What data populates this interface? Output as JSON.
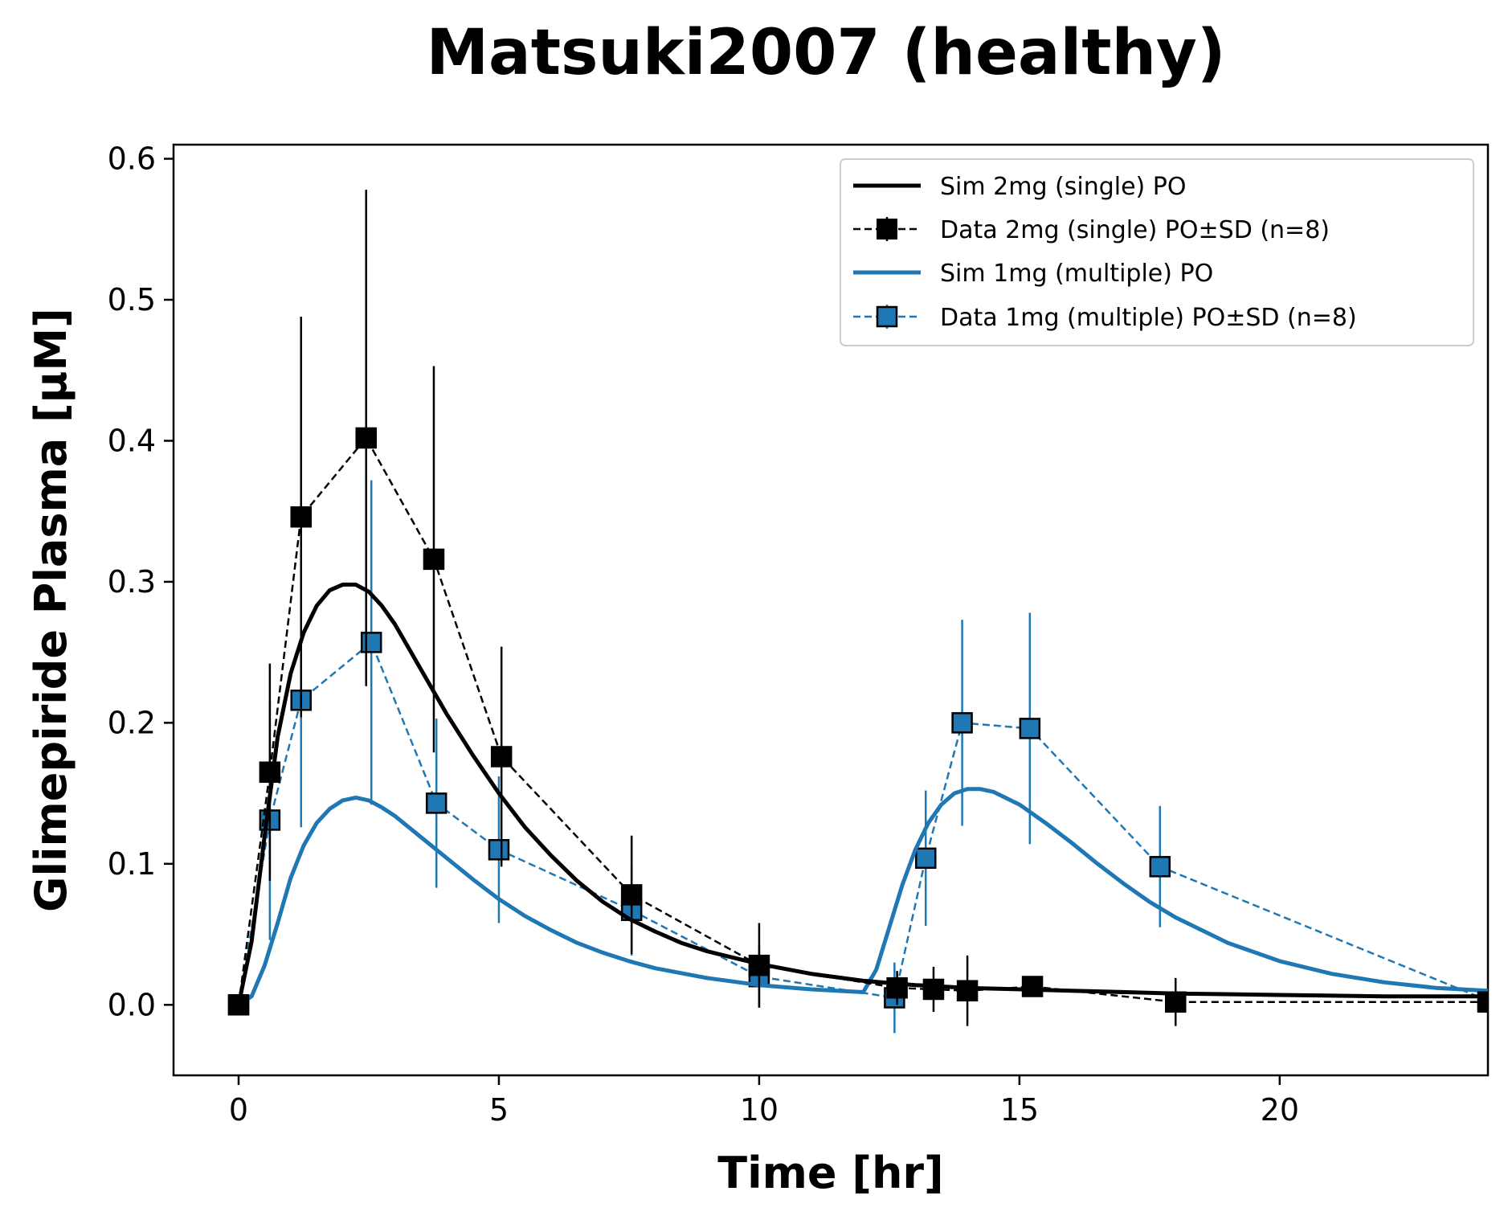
{
  "chart_data": {
    "type": "line",
    "title": "Matsuki2007 (healthy)",
    "xlabel": "Time [hr]",
    "ylabel": "Glimepiride Plasma [μM]",
    "xlim": [
      -1.25,
      24.0
    ],
    "ylim": [
      -0.05,
      0.61
    ],
    "xticks": [
      0,
      5,
      10,
      15,
      20
    ],
    "xtick_labels": [
      "0",
      "5",
      "10",
      "15",
      "20"
    ],
    "yticks": [
      0.0,
      0.1,
      0.2,
      0.3,
      0.4,
      0.5,
      0.6
    ],
    "ytick_labels": [
      "0.0",
      "0.1",
      "0.2",
      "0.3",
      "0.4",
      "0.5",
      "0.6"
    ],
    "grid": false,
    "legend_position": "top-right",
    "series": [
      {
        "name": "Sim 2mg (single) PO",
        "kind": "line",
        "color": "#000000",
        "x": [
          0,
          0.25,
          0.5,
          0.75,
          1.0,
          1.25,
          1.5,
          1.75,
          2.0,
          2.25,
          2.5,
          2.75,
          3.0,
          3.5,
          4.0,
          4.5,
          5.0,
          5.5,
          6.0,
          6.5,
          7.0,
          7.5,
          8.0,
          8.5,
          9.0,
          10.0,
          11.0,
          12.0,
          13.0,
          14.0,
          16.0,
          18.0,
          20.0,
          22.0,
          24.0
        ],
        "y": [
          0.0,
          0.045,
          0.12,
          0.19,
          0.235,
          0.264,
          0.283,
          0.294,
          0.298,
          0.298,
          0.293,
          0.283,
          0.27,
          0.238,
          0.206,
          0.177,
          0.15,
          0.126,
          0.106,
          0.088,
          0.073,
          0.061,
          0.052,
          0.044,
          0.038,
          0.029,
          0.022,
          0.017,
          0.014,
          0.012,
          0.01,
          0.008,
          0.007,
          0.006,
          0.006
        ]
      },
      {
        "name": "Data 2mg (single) PO±SD (n=8)",
        "kind": "data",
        "color": "#000000",
        "marker_face": "#000000",
        "x": [
          0,
          0.6,
          1.2,
          2.45,
          3.75,
          5.05,
          7.55,
          10.0,
          12.65,
          13.35,
          14.0,
          15.25,
          18.0,
          24.0
        ],
        "y": [
          0.0,
          0.165,
          0.346,
          0.402,
          0.316,
          0.176,
          0.078,
          0.028,
          0.012,
          0.011,
          0.01,
          0.013,
          0.002,
          0.002
        ],
        "sd": [
          0.0,
          0.077,
          0.142,
          0.176,
          0.137,
          0.078,
          0.042,
          0.03,
          0.012,
          0.016,
          0.025,
          0.006,
          0.017,
          0.0
        ]
      },
      {
        "name": "Sim 1mg (multiple) PO",
        "kind": "line",
        "color": "#1f77b4",
        "x": [
          0,
          0.25,
          0.5,
          0.75,
          1.0,
          1.25,
          1.5,
          1.75,
          2.0,
          2.25,
          2.5,
          2.75,
          3.0,
          3.5,
          4.0,
          4.5,
          5.0,
          5.5,
          6.0,
          6.5,
          7.0,
          7.5,
          8.0,
          9.0,
          10.0,
          11.0,
          12.0,
          12.25,
          12.5,
          12.75,
          13.0,
          13.25,
          13.5,
          13.75,
          14.0,
          14.25,
          14.5,
          15.0,
          15.5,
          16.0,
          16.5,
          17.0,
          17.5,
          18.0,
          19.0,
          20.0,
          21.0,
          22.0,
          23.0,
          24.0
        ],
        "y": [
          0.0,
          0.006,
          0.028,
          0.058,
          0.09,
          0.113,
          0.129,
          0.139,
          0.145,
          0.147,
          0.145,
          0.14,
          0.134,
          0.119,
          0.104,
          0.089,
          0.075,
          0.063,
          0.053,
          0.044,
          0.037,
          0.031,
          0.026,
          0.019,
          0.014,
          0.011,
          0.009,
          0.025,
          0.055,
          0.085,
          0.11,
          0.129,
          0.142,
          0.15,
          0.153,
          0.153,
          0.151,
          0.142,
          0.129,
          0.115,
          0.1,
          0.086,
          0.073,
          0.062,
          0.044,
          0.031,
          0.022,
          0.016,
          0.012,
          0.01
        ]
      },
      {
        "name": "Data 1mg (multiple) PO±SD (n=8)",
        "kind": "data",
        "color": "#1f77b4",
        "marker_face": "#1f77b4",
        "x": [
          0,
          0.6,
          1.2,
          2.55,
          3.8,
          5.0,
          7.55,
          10.0,
          12.6,
          13.2,
          13.9,
          15.2,
          17.7,
          24.0
        ],
        "y": [
          0.0,
          0.131,
          0.216,
          0.257,
          0.143,
          0.11,
          0.067,
          0.02,
          0.005,
          0.104,
          0.2,
          0.196,
          0.098,
          0.003
        ],
        "sd": [
          0.0,
          0.085,
          0.09,
          0.115,
          0.06,
          0.052,
          0.032,
          0.022,
          0.025,
          0.048,
          0.073,
          0.082,
          0.043,
          0.0
        ]
      }
    ]
  }
}
